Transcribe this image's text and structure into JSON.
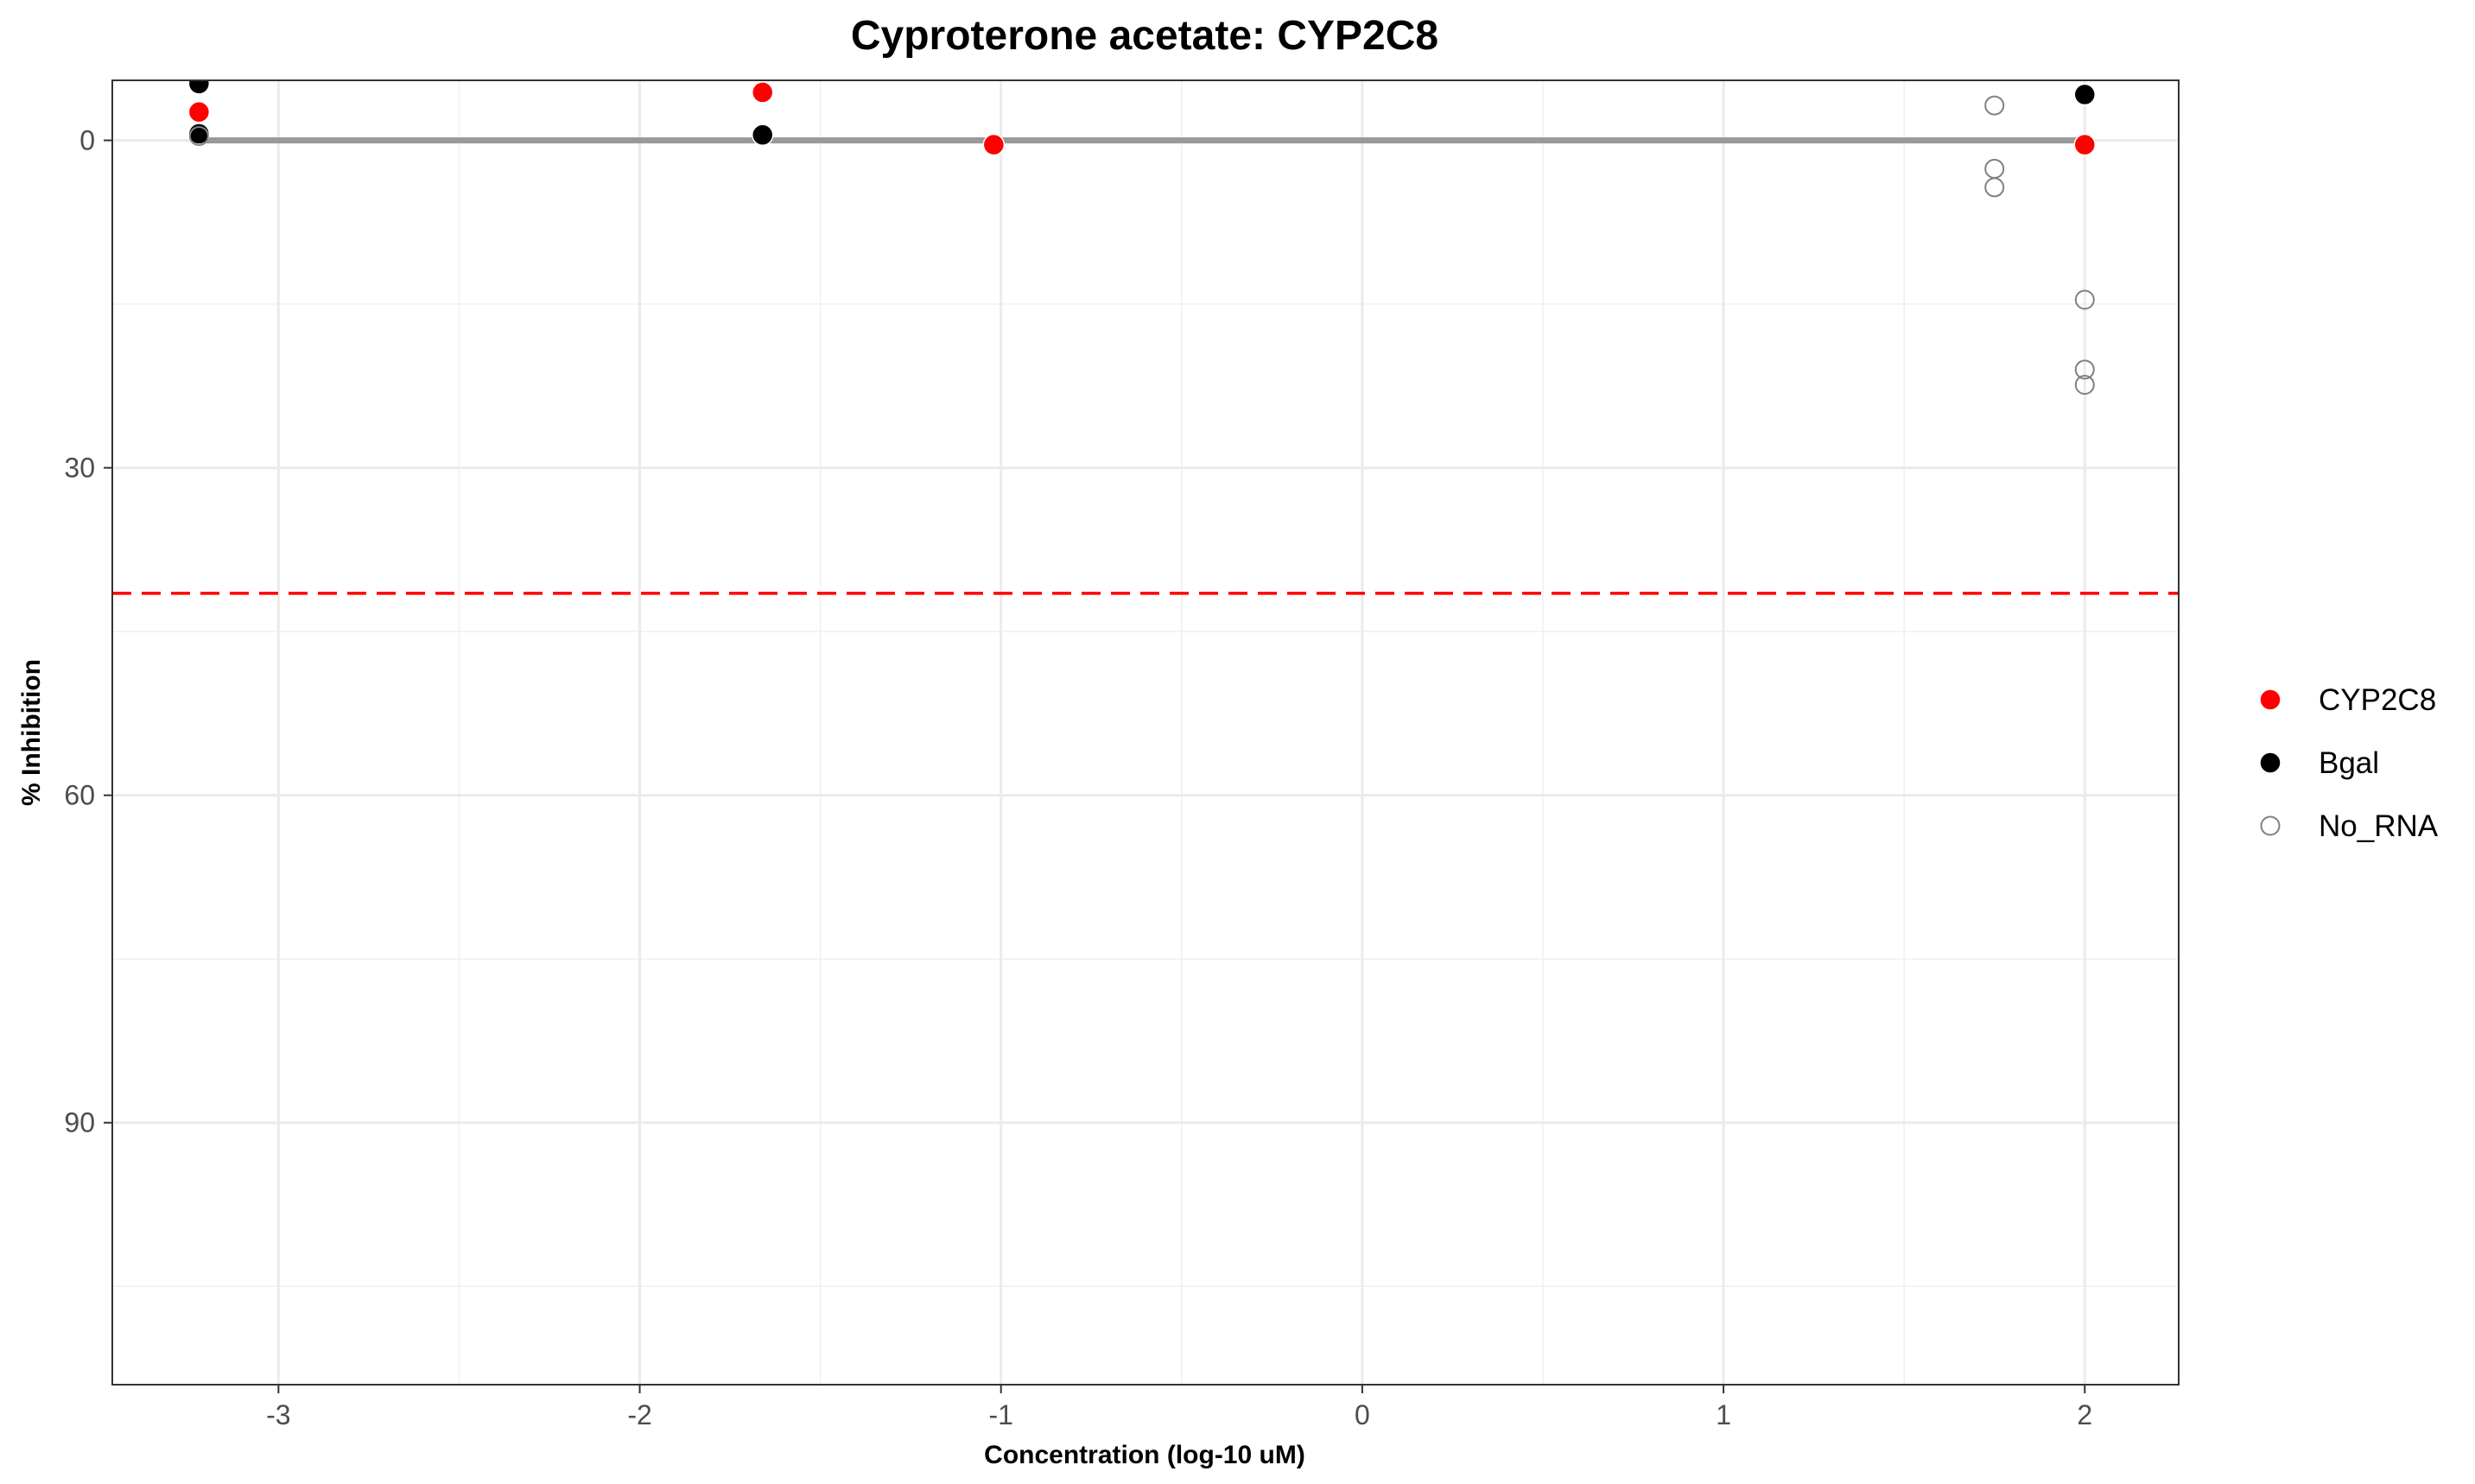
{
  "chart_data": {
    "type": "scatter",
    "title": "Cyproterone acetate: CYP2C8",
    "xlabel": "Concentration (log-10 uM)",
    "ylabel": "% Inhibition",
    "xlim": [
      -3.46,
      2.26
    ],
    "ylim": [
      -5.5,
      114.0
    ],
    "y_reversed": true,
    "x_ticks": [
      -3,
      -2,
      -1,
      0,
      1,
      2
    ],
    "x_tick_labels": [
      "-3",
      "-2",
      "-1",
      "0",
      "1",
      "2"
    ],
    "y_ticks": [
      0,
      30,
      60,
      90
    ],
    "y_tick_labels": [
      "0",
      "30",
      "60",
      "90"
    ],
    "grid": true,
    "legend_position": "right",
    "series": [
      {
        "name": "CYP2C8",
        "marker": "filled-circle",
        "color": "#ff0000",
        "points": [
          {
            "x": -3.22,
            "y": -5.1
          },
          {
            "x": -3.22,
            "y": -2.6
          },
          {
            "x": -1.66,
            "y": -4.4
          },
          {
            "x": -1.02,
            "y": 0.4
          },
          {
            "x": 2.0,
            "y": 0.4
          }
        ]
      },
      {
        "name": "Bgal",
        "marker": "filled-circle",
        "color": "#000000",
        "points": [
          {
            "x": -3.22,
            "y": -5.2
          },
          {
            "x": -3.22,
            "y": -0.6
          },
          {
            "x": -1.66,
            "y": -0.5
          },
          {
            "x": 2.0,
            "y": -4.2
          }
        ]
      },
      {
        "name": "No_RNA",
        "marker": "open-circle",
        "color": "#808080",
        "points": [
          {
            "x": -3.22,
            "y": -0.4
          },
          {
            "x": 1.75,
            "y": -3.2
          },
          {
            "x": 1.75,
            "y": 2.6
          },
          {
            "x": 1.75,
            "y": 4.3
          },
          {
            "x": 2.0,
            "y": 14.6
          },
          {
            "x": 2.0,
            "y": 21.0
          },
          {
            "x": 2.0,
            "y": 22.4
          }
        ]
      }
    ],
    "reference_lines": [
      {
        "type": "fit",
        "color": "#999999",
        "style": "solid",
        "x": [
          -3.22,
          2.0
        ],
        "y": [
          0,
          0
        ]
      },
      {
        "type": "threshold",
        "color": "#ff0000",
        "style": "dashed",
        "y": 41.5
      }
    ]
  }
}
